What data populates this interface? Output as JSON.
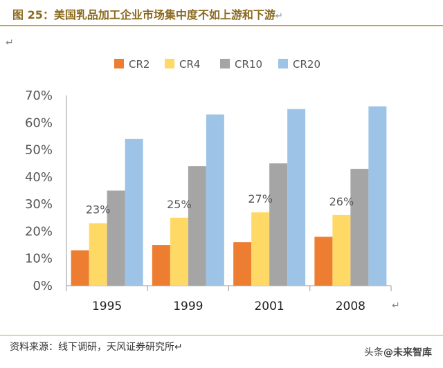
{
  "header": {
    "title": "图 25：美国乳品加工企业市场集中度不如上游和下游",
    "return_mark": "↵"
  },
  "stray_mark": "↵",
  "axis_return_mark": "↵",
  "footer": {
    "source": "资料来源：线下调研，天风证券研究所↵",
    "watermark_prefix": "头条",
    "watermark_name": "@未来智库"
  },
  "chart_data": {
    "type": "bar",
    "categories": [
      "1995",
      "1999",
      "2001",
      "2008"
    ],
    "series": [
      {
        "name": "CR2",
        "color": "#ED7D31",
        "values": [
          13,
          15,
          16,
          18
        ]
      },
      {
        "name": "CR4",
        "color": "#FFD966",
        "values": [
          23,
          25,
          27,
          26
        ]
      },
      {
        "name": "CR10",
        "color": "#A5A5A5",
        "values": [
          35,
          44,
          45,
          43
        ]
      },
      {
        "name": "CR20",
        "color": "#9DC3E6",
        "values": [
          54,
          63,
          65,
          66
        ]
      }
    ],
    "annotations": [
      "23%",
      "25%",
      "27%",
      "26%"
    ],
    "y_ticks": [
      "0%",
      "10%",
      "20%",
      "30%",
      "40%",
      "50%",
      "60%",
      "70%"
    ],
    "ylim": [
      0,
      70
    ],
    "legend_position": "top",
    "grid": false
  }
}
